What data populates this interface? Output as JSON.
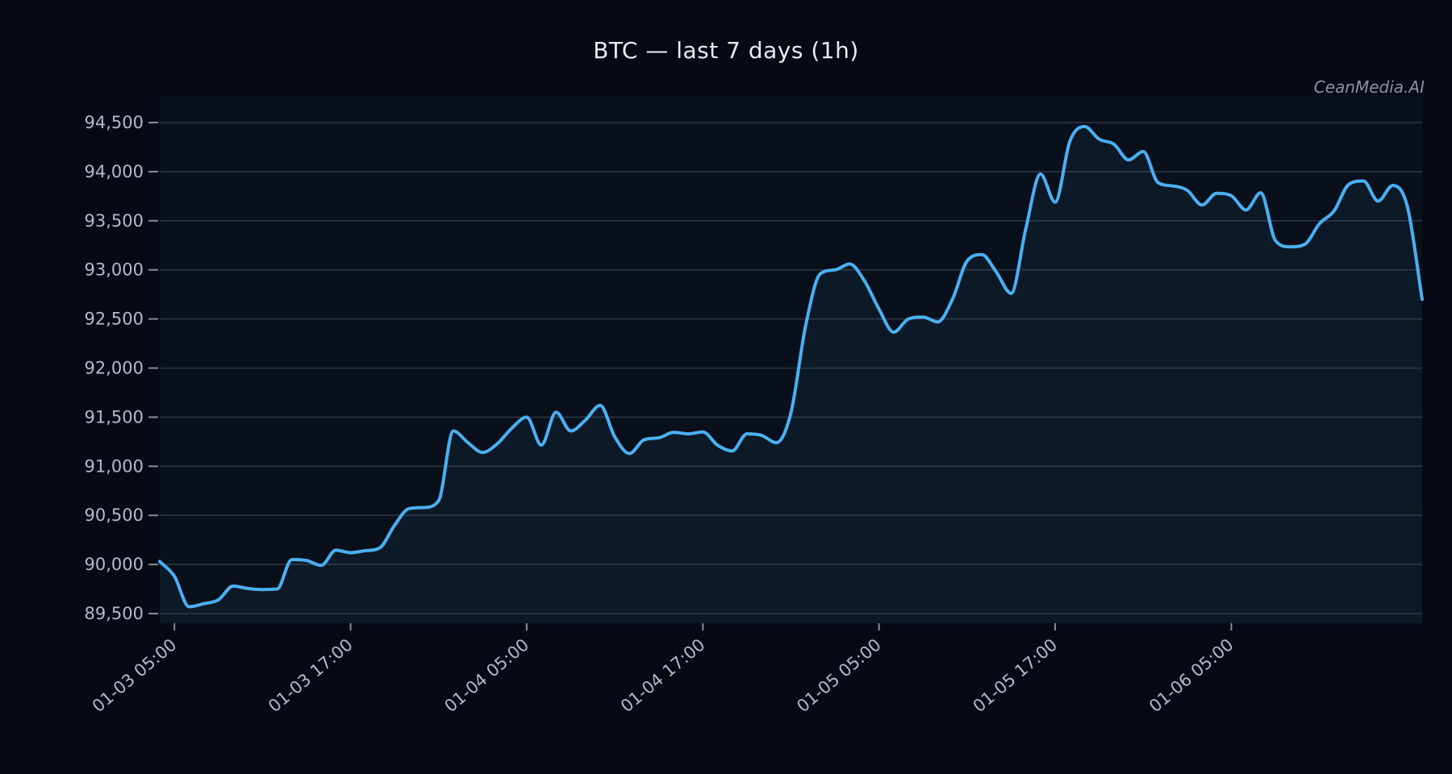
{
  "figure": {
    "title": "BTC — last 7 days (1h)",
    "watermark": "CeanMedia.AI"
  },
  "chart_data": {
    "type": "line",
    "title": "BTC — last 7 days (1h)",
    "watermark": "CeanMedia.AI",
    "xlabel": "",
    "ylabel": "",
    "grid": true,
    "legend": false,
    "x_start": "01-03 04:00",
    "x_interval_hours": 1,
    "x_tick_indices": [
      1,
      13,
      25,
      37,
      49,
      61,
      73
    ],
    "x_tick_labels": [
      "01-03 05:00",
      "01-03 17:00",
      "01-04 05:00",
      "01-04 17:00",
      "01-05 05:00",
      "01-05 17:00",
      "01-06 05:00"
    ],
    "y_ticks": [
      89500,
      90000,
      90500,
      91000,
      91500,
      92000,
      92500,
      93000,
      93500,
      94000,
      94500
    ],
    "ylim": [
      89400,
      94680
    ],
    "series": [
      {
        "name": "BTC",
        "values": [
          90030,
          89880,
          89570,
          89600,
          89640,
          89780,
          89755,
          89745,
          89750,
          90050,
          90040,
          89990,
          90145,
          90120,
          90140,
          90170,
          90400,
          90570,
          90580,
          90650,
          91360,
          91240,
          91140,
          91230,
          91390,
          91500,
          91215,
          91550,
          91360,
          91470,
          91620,
          91300,
          91130,
          91270,
          91290,
          91345,
          91330,
          91350,
          91215,
          91155,
          91330,
          91315,
          91240,
          91545,
          92430,
          92960,
          93000,
          93060,
          92890,
          92600,
          92365,
          92500,
          92520,
          92470,
          92700,
          93090,
          93155,
          92975,
          92760,
          93420,
          93975,
          93690,
          94310,
          94460,
          94330,
          94280,
          94120,
          94205,
          93890,
          93855,
          93810,
          93660,
          93780,
          93755,
          93610,
          93785,
          93300,
          93235,
          93260,
          93470,
          93600,
          93870,
          93905,
          93700,
          93860,
          93640,
          92700
        ]
      }
    ],
    "colors": {
      "line": "#4bb0f2",
      "fill": "rgba(77,178,242,0.055)",
      "background": "#050a15",
      "plot_background": "#09101c",
      "gridline": "rgba(148,163,196,0.25)",
      "tick_mark": "#848b9b",
      "tick_label": "#b4bac7",
      "title": "#e8ebf2",
      "watermark": "#8a92a2"
    }
  }
}
